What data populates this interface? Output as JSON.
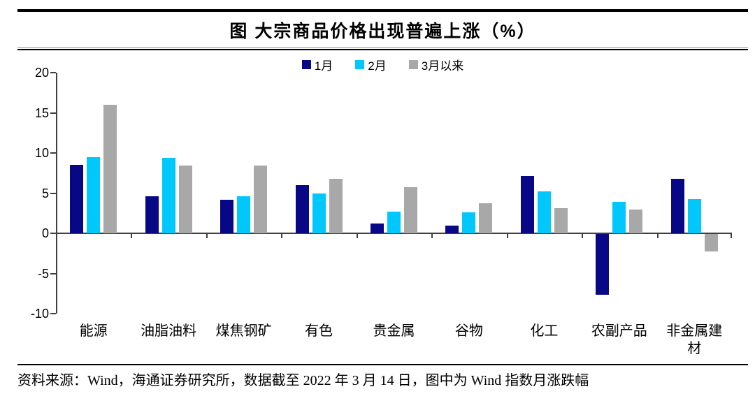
{
  "figure": {
    "title": "图  大宗商品价格出现普遍上涨（%）",
    "source_note": "资料来源：Wind，海通证券研究所，数据截至 2022 年 3 月 14 日，图中为 Wind 指数月涨跌幅"
  },
  "chart_data": {
    "type": "bar",
    "title": "图 大宗商品价格出现普遍上涨（%）",
    "unit": "%",
    "categories": [
      "能源",
      "油脂油料",
      "煤焦钢矿",
      "有色",
      "贵金属",
      "谷物",
      "化工",
      "农副产品",
      "非金属建材"
    ],
    "series": [
      {
        "name": "1月",
        "color": "#080887",
        "values": [
          8.5,
          4.6,
          4.2,
          6.0,
          1.2,
          1.0,
          7.1,
          -7.6,
          6.8
        ]
      },
      {
        "name": "2月",
        "color": "#00C8FD",
        "values": [
          9.5,
          9.4,
          4.6,
          5.0,
          2.7,
          2.6,
          5.2,
          3.9,
          4.3
        ]
      },
      {
        "name": "3月以来",
        "color": "#A8A8A8",
        "values": [
          16.0,
          8.4,
          8.4,
          6.8,
          5.7,
          3.7,
          3.1,
          3.0,
          -2.2
        ]
      }
    ],
    "ylim": [
      -10,
      20
    ],
    "yticks": [
      20,
      15,
      10,
      5,
      0,
      -5,
      -10
    ],
    "grid": false,
    "legend_position": "top-center",
    "axis_color": "#404040",
    "xlabel": "",
    "ylabel": ""
  }
}
